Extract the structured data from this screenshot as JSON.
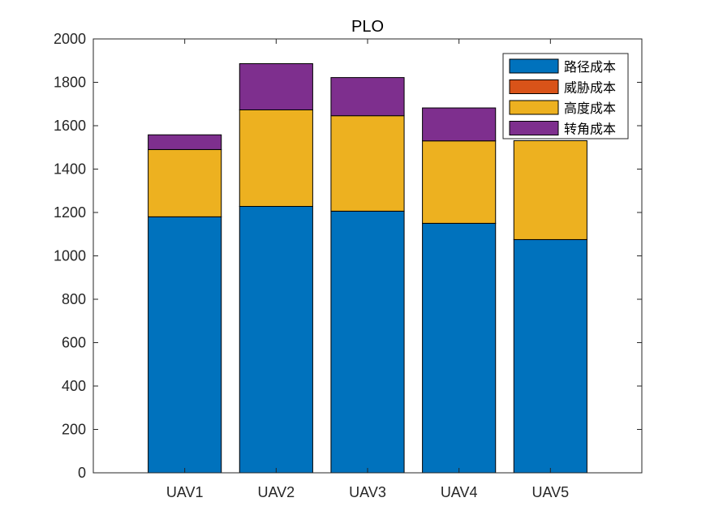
{
  "chart_data": {
    "type": "bar",
    "stacked": true,
    "title": "PLO",
    "xlabel": "",
    "ylabel": "",
    "categories": [
      "UAV1",
      "UAV2",
      "UAV3",
      "UAV4",
      "UAV5"
    ],
    "series": [
      {
        "name": "路径成本",
        "color": "#0072BD",
        "values": [
          1180,
          1228,
          1206,
          1150,
          1075
        ]
      },
      {
        "name": "威胁成本",
        "color": "#D95319",
        "values": [
          0,
          0,
          0,
          0,
          0
        ]
      },
      {
        "name": "高度成本",
        "color": "#EDB120",
        "values": [
          310,
          445,
          440,
          380,
          456
        ]
      },
      {
        "name": "转角成本",
        "color": "#7E2F8E",
        "values": [
          68,
          213,
          176,
          152,
          0
        ]
      }
    ],
    "ylim": [
      0,
      2000
    ],
    "yticks": [
      0,
      200,
      400,
      600,
      800,
      1000,
      1200,
      1400,
      1600,
      1800,
      2000
    ],
    "xlim": [
      0,
      6
    ],
    "grid": false,
    "legend_position": "top-right"
  }
}
